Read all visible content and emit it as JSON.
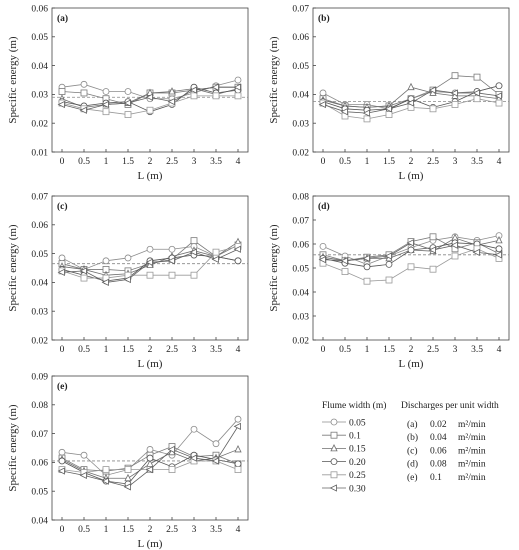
{
  "chart_data": [
    {
      "type": "line",
      "panel_label": "(a)",
      "xlabel": "L (m)",
      "ylabel": "Specific energy (m)",
      "x": [
        "0",
        "0.5",
        "1",
        "1.5",
        "2",
        "2.5",
        "3",
        "3.5",
        "4"
      ],
      "ylim": [
        0.01,
        0.06
      ],
      "yticks": [
        "0.01",
        "0.02",
        "0.03",
        "0.04",
        "0.05",
        "0.06"
      ],
      "reference_line": 0.029,
      "series": [
        {
          "values": [
            0.0325,
            0.0335,
            0.031,
            0.031,
            0.0285,
            0.0285,
            0.0305,
            0.033,
            0.035
          ]
        },
        {
          "values": [
            0.031,
            0.0305,
            0.0285,
            0.0265,
            0.0305,
            0.0305,
            0.0315,
            0.0325,
            0.0325
          ]
        },
        {
          "values": [
            0.0285,
            0.0255,
            0.0265,
            0.027,
            0.0305,
            0.031,
            0.032,
            0.03,
            0.032
          ]
        },
        {
          "values": [
            0.0275,
            0.026,
            0.027,
            0.0275,
            0.024,
            0.0265,
            0.0325,
            0.0305,
            0.0315
          ]
        },
        {
          "values": [
            0.027,
            0.025,
            0.024,
            0.023,
            0.0245,
            0.027,
            0.0295,
            0.0295,
            0.0295
          ]
        },
        {
          "values": [
            0.0265,
            0.0245,
            0.0265,
            0.027,
            0.029,
            0.0275,
            0.0315,
            0.0325,
            0.0325
          ]
        }
      ]
    },
    {
      "type": "line",
      "panel_label": "(b)",
      "xlabel": "L (m)",
      "ylabel": "Specific energy (m)",
      "x": [
        "0",
        "0.5",
        "1",
        "1.5",
        "2",
        "2.5",
        "3",
        "3.5",
        "4"
      ],
      "ylim": [
        0.02,
        0.07
      ],
      "yticks": [
        "0.02",
        "0.03",
        "0.04",
        "0.05",
        "0.06",
        "0.07"
      ],
      "reference_line": 0.0375,
      "series": [
        {
          "values": [
            0.0405,
            0.0365,
            0.0365,
            0.035,
            0.0385,
            0.041,
            0.0405,
            0.041,
            0.043
          ]
        },
        {
          "values": [
            0.0385,
            0.036,
            0.0355,
            0.036,
            0.0385,
            0.0415,
            0.0465,
            0.046,
            0.04
          ]
        },
        {
          "values": [
            0.038,
            0.036,
            0.0355,
            0.036,
            0.0425,
            0.0405,
            0.0395,
            0.0395,
            0.0385
          ]
        },
        {
          "values": [
            0.0375,
            0.035,
            0.0345,
            0.035,
            0.0385,
            0.0355,
            0.0375,
            0.041,
            0.043
          ]
        },
        {
          "values": [
            0.037,
            0.0325,
            0.0315,
            0.033,
            0.0355,
            0.035,
            0.0365,
            0.0385,
            0.037
          ]
        },
        {
          "values": [
            0.0365,
            0.034,
            0.0335,
            0.035,
            0.037,
            0.0415,
            0.0405,
            0.0405,
            0.0395
          ]
        }
      ]
    },
    {
      "type": "line",
      "panel_label": "(c)",
      "xlabel": "L (m)",
      "ylabel": "Specific energy (m)",
      "x": [
        "0",
        "0.5",
        "1",
        "1.5",
        "2",
        "2.5",
        "3",
        "3.5",
        "4"
      ],
      "ylim": [
        0.02,
        0.07
      ],
      "yticks": [
        "0.02",
        "0.03",
        "0.04",
        "0.05",
        "0.06",
        "0.07"
      ],
      "reference_line": 0.0465,
      "series": [
        {
          "values": [
            0.0485,
            0.0445,
            0.0475,
            0.0485,
            0.0515,
            0.0515,
            0.0525,
            0.049,
            0.0475
          ]
        },
        {
          "values": [
            0.0465,
            0.0445,
            0.0445,
            0.044,
            0.0465,
            0.048,
            0.0545,
            0.049,
            0.053
          ]
        },
        {
          "values": [
            0.0455,
            0.0445,
            0.0425,
            0.043,
            0.046,
            0.049,
            0.051,
            0.049,
            0.054
          ]
        },
        {
          "values": [
            0.0445,
            0.0425,
            0.0405,
            0.0415,
            0.0475,
            0.0485,
            0.0495,
            0.049,
            0.0475
          ]
        },
        {
          "values": [
            0.044,
            0.0415,
            0.0415,
            0.0425,
            0.0425,
            0.0425,
            0.0425,
            0.0505,
            0.0525
          ]
        },
        {
          "values": [
            0.0435,
            0.044,
            0.04,
            0.041,
            0.047,
            0.0475,
            0.0505,
            0.048,
            0.0515
          ]
        }
      ]
    },
    {
      "type": "line",
      "panel_label": "(d)",
      "xlabel": "L (m)",
      "ylabel": "Specific energy (m)",
      "x": [
        "0",
        "0.5",
        "1",
        "1.5",
        "2",
        "2.5",
        "3",
        "3.5",
        "4"
      ],
      "ylim": [
        0.02,
        0.08
      ],
      "yticks": [
        "0.02",
        "0.03",
        "0.04",
        "0.05",
        "0.06",
        "0.07",
        "0.08"
      ],
      "reference_line": 0.0555,
      "series": [
        {
          "values": [
            0.059,
            0.055,
            0.0515,
            0.055,
            0.0585,
            0.0615,
            0.063,
            0.0615,
            0.0635
          ]
        },
        {
          "values": [
            0.0555,
            0.053,
            0.0545,
            0.0555,
            0.061,
            0.063,
            0.058,
            0.0605,
            0.056
          ]
        },
        {
          "values": [
            0.0545,
            0.053,
            0.054,
            0.054,
            0.0575,
            0.057,
            0.0625,
            0.0595,
            0.0615
          ]
        },
        {
          "values": [
            0.054,
            0.052,
            0.0505,
            0.0515,
            0.0575,
            0.0585,
            0.0605,
            0.06,
            0.058
          ]
        },
        {
          "values": [
            0.052,
            0.0485,
            0.0445,
            0.045,
            0.0505,
            0.0495,
            0.055,
            0.058,
            0.054
          ]
        },
        {
          "values": [
            0.0535,
            0.053,
            0.054,
            0.055,
            0.0605,
            0.0575,
            0.0595,
            0.0565,
            0.0555
          ]
        }
      ]
    },
    {
      "type": "line",
      "panel_label": "(e)",
      "xlabel": "L (m)",
      "ylabel": "Specific energy (m)",
      "x": [
        "0",
        "0.5",
        "1",
        "1.5",
        "2",
        "2.5",
        "3",
        "3.5",
        "4"
      ],
      "ylim": [
        0.04,
        0.09
      ],
      "yticks": [
        "0.04",
        "0.05",
        "0.06",
        "0.07",
        "0.08",
        "0.09"
      ],
      "reference_line": 0.0605,
      "series": [
        {
          "values": [
            0.0635,
            0.0625,
            0.0555,
            0.0575,
            0.0645,
            0.0625,
            0.0715,
            0.0665,
            0.075
          ]
        },
        {
          "values": [
            0.0615,
            0.0575,
            0.057,
            0.058,
            0.0625,
            0.0655,
            0.062,
            0.0625,
            0.0595
          ]
        },
        {
          "values": [
            0.061,
            0.057,
            0.0545,
            0.0545,
            0.0595,
            0.0635,
            0.0605,
            0.0615,
            0.0645
          ]
        },
        {
          "values": [
            0.0605,
            0.0565,
            0.0535,
            0.0525,
            0.0615,
            0.0585,
            0.0625,
            0.061,
            0.0595
          ]
        },
        {
          "values": [
            0.0575,
            0.0565,
            0.0575,
            0.0575,
            0.0575,
            0.0575,
            0.0605,
            0.0605,
            0.0575
          ]
        },
        {
          "values": [
            0.057,
            0.0555,
            0.0535,
            0.0515,
            0.0575,
            0.0645,
            0.0615,
            0.0605,
            0.0725
          ]
        }
      ]
    }
  ],
  "legend": {
    "width_title": "Flume width (m)",
    "widths": [
      "0.05",
      "0.1",
      "0.15",
      "0.20",
      "0.25",
      "0.30"
    ],
    "markers": [
      "circle",
      "square",
      "triangle-up",
      "circle",
      "square",
      "triangle-left"
    ],
    "discharge_title": "Discharges per unit width",
    "discharges": [
      {
        "label": "(a)",
        "value": "0.02",
        "unit": "m²/min"
      },
      {
        "label": "(b)",
        "value": "0.04",
        "unit": "m²/min"
      },
      {
        "label": "(c)",
        "value": "0.06",
        "unit": "m²/min"
      },
      {
        "label": "(d)",
        "value": "0.08",
        "unit": "m²/min"
      },
      {
        "label": "(e)",
        "value": "0.1",
        "unit": "m²/min"
      }
    ]
  },
  "colors": {
    "series": [
      "#8c8c8c",
      "#7a7a7a",
      "#6e6e6e",
      "#555555",
      "#9a9a9a",
      "#606060"
    ],
    "reference": "#888888"
  }
}
